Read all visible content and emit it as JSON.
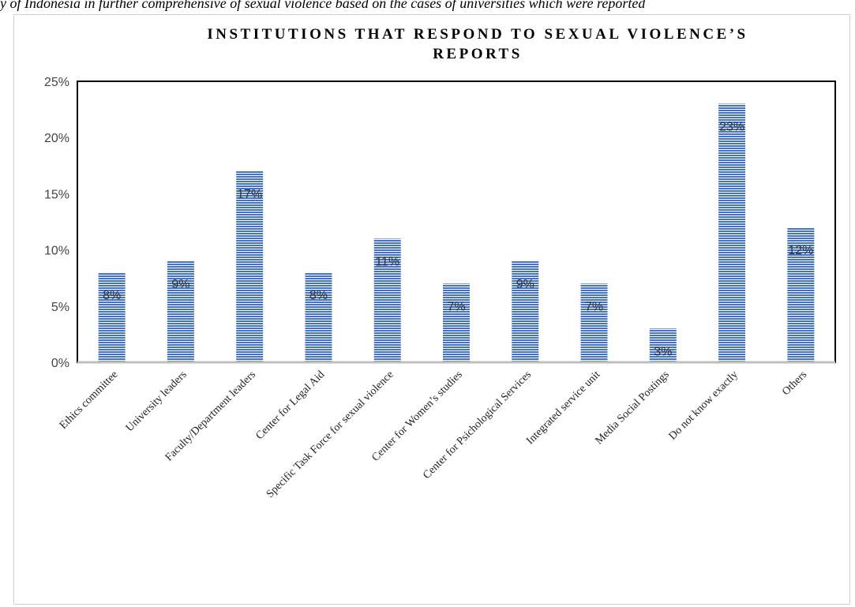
{
  "caption": "y of Indonesia in further comprehensive of sexual violence based on the cases of universities which were reported",
  "chart_data": {
    "type": "bar",
    "title": "INSTITUTIONS THAT RESPOND TO SEXUAL VIOLENCE’S REPORTS",
    "title_lines": [
      "INSTITUTIONS THAT RESPOND TO SEXUAL VIOLENCE’S",
      "REPORTS"
    ],
    "xlabel": "",
    "ylabel": "",
    "ylim": [
      0,
      25
    ],
    "yticks": [
      0,
      5,
      10,
      15,
      20,
      25
    ],
    "ytick_labels": [
      "0%",
      "5%",
      "10%",
      "15%",
      "20%",
      "25%"
    ],
    "categories": [
      "Ethics committee",
      "University leaders",
      "Faculty/Department leaders",
      "Center for Legal Aid",
      "Specific Task Force for sexual violence",
      "Center for Women’s studies",
      "Center for Psichological Services",
      "Integrated service unit",
      "Media Social Postings",
      "Do not know exactly",
      "Others"
    ],
    "values": [
      8,
      9,
      17,
      8,
      11,
      7,
      9,
      7,
      3,
      23,
      12
    ],
    "data_labels": [
      "8%",
      "9%",
      "17%",
      "8%",
      "11%",
      "7%",
      "9%",
      "7%",
      "3%",
      "23%",
      "12%"
    ],
    "bar_color": "#4472c4",
    "bar_pattern": "horizontal stripes",
    "grid": false,
    "legend": "none"
  }
}
